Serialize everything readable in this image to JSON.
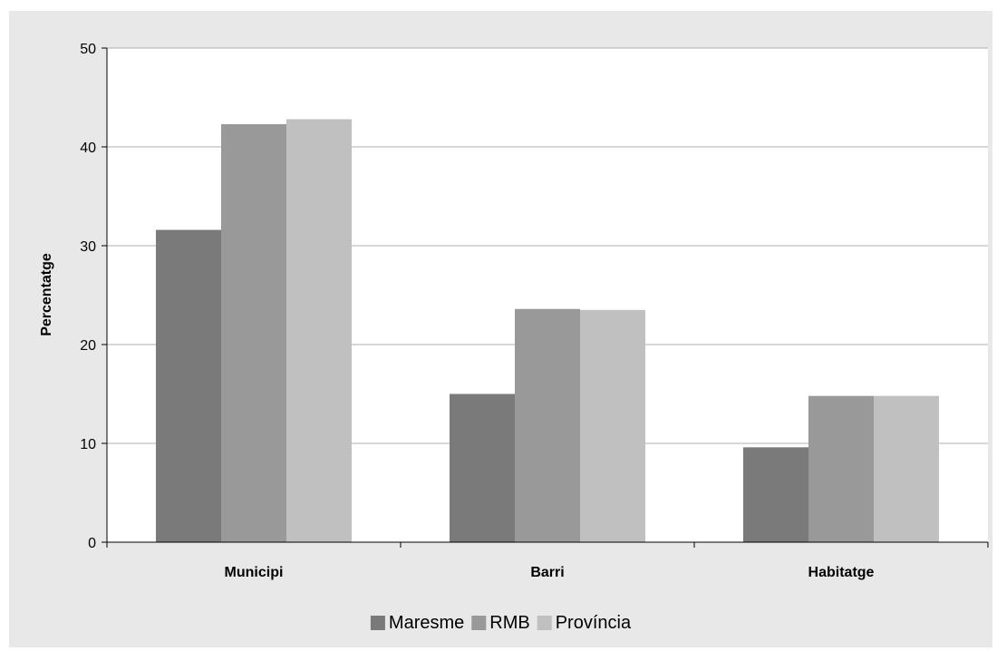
{
  "chart_data": {
    "type": "bar",
    "title": "",
    "xlabel": "",
    "ylabel": "Percentatge",
    "ylim": [
      0,
      50
    ],
    "yticks": [
      0,
      10,
      20,
      30,
      40,
      50
    ],
    "grid": true,
    "legend_position": "bottom",
    "categories": [
      "Municipi",
      "Barri",
      "Habitatge"
    ],
    "series": [
      {
        "name": "Maresme",
        "values": [
          31.6,
          15.0,
          9.6
        ],
        "color": "#7a7a7a"
      },
      {
        "name": "RMB",
        "values": [
          42.3,
          23.6,
          14.8
        ],
        "color": "#999999"
      },
      {
        "name": "Província",
        "values": [
          42.8,
          23.5,
          14.8
        ],
        "color": "#c0c0c0"
      }
    ],
    "plot_background": "#ffffff",
    "frame_background": "#e8e8e8"
  }
}
